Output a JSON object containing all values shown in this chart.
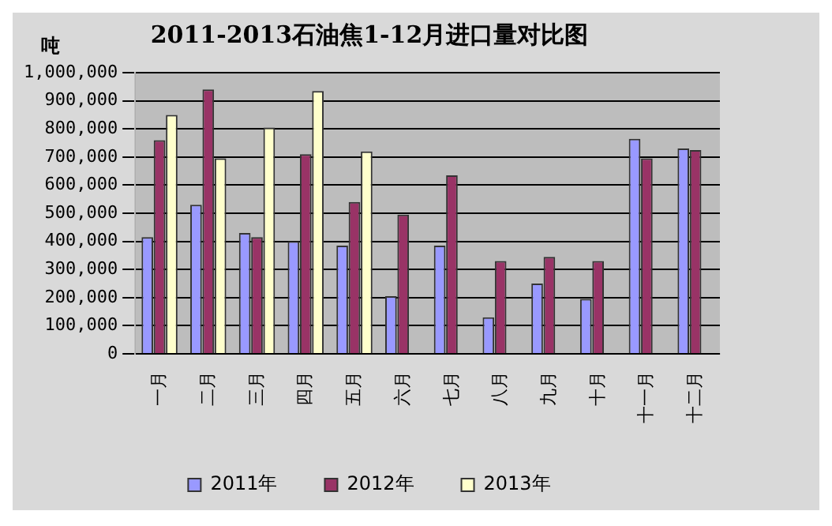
{
  "chart_data": {
    "type": "bar",
    "title": "2011-2013石油焦1-12月进口量对比图",
    "ylabel": "吨",
    "categories": [
      "一月",
      "二月",
      "三月",
      "四月",
      "五月",
      "六月",
      "七月",
      "八月",
      "九月",
      "十月",
      "十一月",
      "十二月"
    ],
    "series": [
      {
        "name": "2011年",
        "color": "#9999ff",
        "values": [
          415000,
          530000,
          430000,
          400000,
          385000,
          205000,
          385000,
          130000,
          250000,
          195000,
          765000,
          730000
        ]
      },
      {
        "name": "2012年",
        "color": "#993366",
        "values": [
          760000,
          940000,
          415000,
          710000,
          540000,
          495000,
          635000,
          330000,
          345000,
          330000,
          695000,
          725000
        ]
      },
      {
        "name": "2013年",
        "color": "#ffffcc",
        "values": [
          850000,
          695000,
          805000,
          935000,
          720000,
          null,
          null,
          null,
          null,
          null,
          null,
          null
        ]
      }
    ],
    "ylim": [
      0,
      1000000
    ],
    "yticks": [
      0,
      {
        "value": 100000,
        "label": "100,000"
      },
      {
        "value": 200000,
        "label": "200,000"
      },
      {
        "value": 300000,
        "label": "300,000"
      },
      {
        "value": 400000,
        "label": "400,000"
      },
      {
        "value": 500000,
        "label": "500,000"
      },
      {
        "value": 600000,
        "label": "600,000"
      },
      {
        "value": 700000,
        "label": "700,000"
      },
      {
        "value": 800000,
        "label": "800,000"
      },
      {
        "value": 900000,
        "label": "900,000"
      },
      {
        "value": 1000000,
        "label": "1,000,000"
      }
    ],
    "grid": "y",
    "legend": "bottom"
  }
}
